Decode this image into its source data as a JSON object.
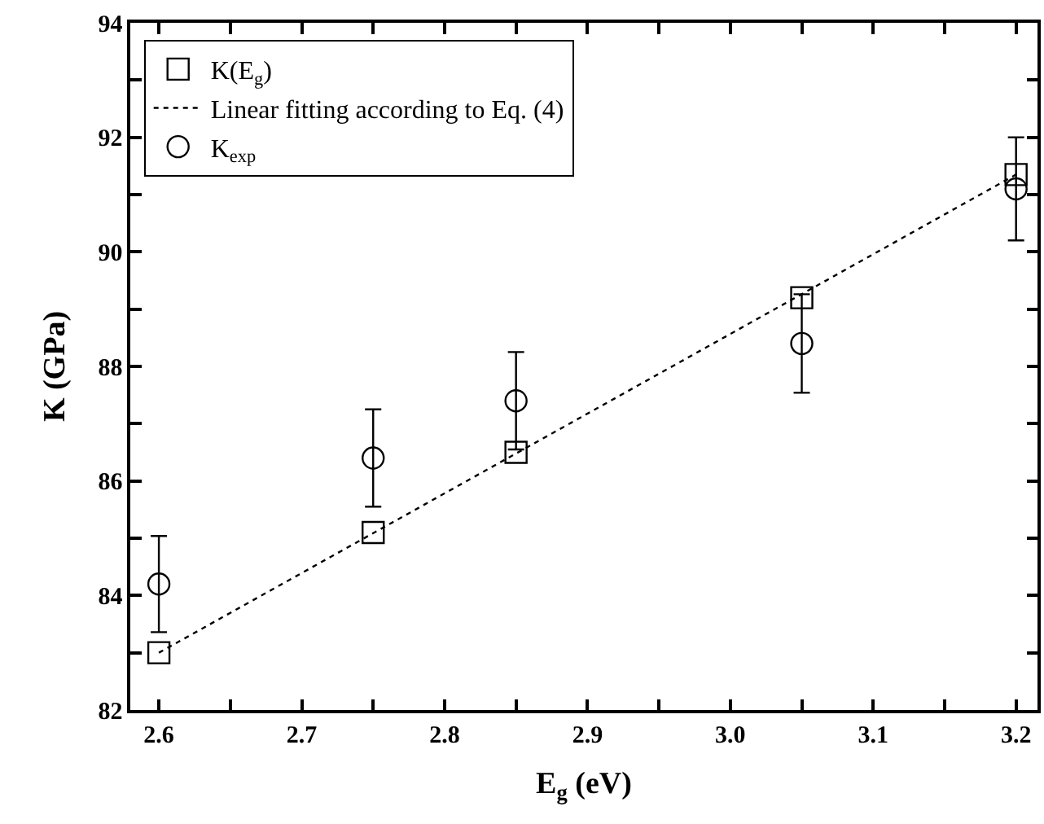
{
  "chart_data": {
    "type": "scatter",
    "xlabel": "E$_{g}$ (eV)",
    "ylabel": "K (GPa)",
    "xlim": [
      2.58,
      3.215
    ],
    "ylim": [
      82,
      94
    ],
    "xticks": [
      2.6,
      {
        "value": 2.65,
        "label": null
      },
      2.7,
      {
        "value": 2.75,
        "label": null
      },
      2.8,
      {
        "value": 2.85,
        "label": null
      },
      2.9,
      {
        "value": 2.95,
        "label": null
      },
      "3.0",
      {
        "value": 3.05,
        "label": null
      },
      3.1,
      {
        "value": 3.15,
        "label": null
      },
      3.2
    ],
    "yticks": [
      82,
      {
        "value": 83,
        "label": null
      },
      84,
      {
        "value": 85,
        "label": null
      },
      86,
      {
        "value": 87,
        "label": null
      },
      88,
      {
        "value": 89,
        "label": null
      },
      90,
      {
        "value": 91,
        "label": null
      },
      92,
      {
        "value": 93,
        "label": null
      },
      94
    ],
    "series": [
      {
        "name": "K(E$_{g}$)",
        "color": "#000000",
        "marker": "square",
        "x": [
          2.6,
          2.75,
          2.85,
          3.05,
          3.2
        ],
        "values": [
          83.0,
          85.1,
          86.5,
          89.2,
          91.35
        ]
      },
      {
        "name": "Linear fitting according to Eq. (4)",
        "color": "#000000",
        "type": "line",
        "marker": "none",
        "line_style": "dotted",
        "x": [
          2.6,
          3.2
        ],
        "values": [
          83.0,
          91.35
        ]
      },
      {
        "name": "K$_{exp}$",
        "color": "#000000",
        "marker": "circle",
        "x": [
          2.6,
          2.75,
          2.85,
          3.05,
          3.2
        ],
        "values": [
          84.2,
          86.4,
          87.4,
          88.4,
          91.1
        ],
        "errors": [
          0.84,
          0.85,
          0.85,
          0.86,
          0.9
        ]
      }
    ],
    "legend": "top left"
  }
}
